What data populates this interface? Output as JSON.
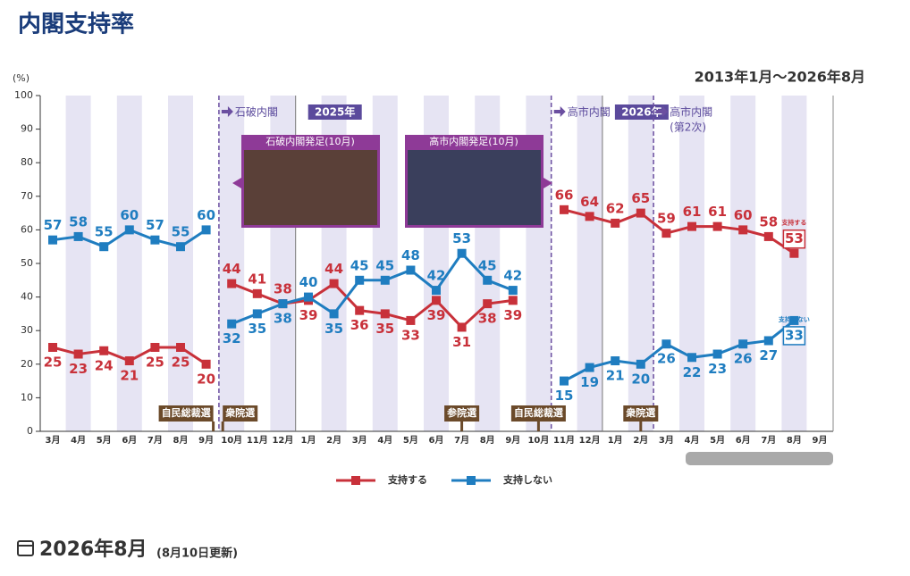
{
  "header": {
    "title": "内閣支持率",
    "range": "2013年1月～2026年8月"
  },
  "chart_data": {
    "type": "line",
    "y_unit_label": "(%)",
    "categories": [
      "3月",
      "4月",
      "5月",
      "6月",
      "7月",
      "8月",
      "9月",
      "10月",
      "11月",
      "12月",
      "1月",
      "2月",
      "3月",
      "4月",
      "5月",
      "6月",
      "7月",
      "8月",
      "9月",
      "10月",
      "11月",
      "12月",
      "1月",
      "2月",
      "3月",
      "4月",
      "5月",
      "6月",
      "7月",
      "8月",
      "9月"
    ],
    "series": [
      {
        "name": "支持する",
        "color": "#c8313a",
        "values": [
          25,
          23,
          24,
          21,
          25,
          25,
          20,
          44,
          41,
          38,
          39,
          44,
          36,
          35,
          33,
          39,
          31,
          38,
          39,
          null,
          66,
          64,
          62,
          65,
          59,
          61,
          61,
          60,
          58,
          53,
          null
        ]
      },
      {
        "name": "支持しない",
        "color": "#1f7dc0",
        "values": [
          57,
          58,
          55,
          60,
          57,
          55,
          60,
          32,
          35,
          38,
          40,
          35,
          45,
          45,
          48,
          42,
          53,
          45,
          42,
          null,
          15,
          19,
          21,
          20,
          26,
          22,
          23,
          26,
          27,
          33,
          null
        ]
      }
    ],
    "ylim": [
      0,
      100
    ],
    "yticks": [
      0,
      10,
      20,
      30,
      40,
      50,
      60,
      70,
      80,
      90,
      100
    ],
    "year_labels": [
      {
        "label": "2025年",
        "category": 10
      },
      {
        "label": "2026年",
        "category": 22
      }
    ],
    "cabinets": [
      {
        "label": "石破内閣",
        "category": 7,
        "line_break": true
      },
      {
        "label": "高市内閣",
        "category": 20,
        "line_break": true
      },
      {
        "label": "高市内閣",
        "sublabel": "(第2次)",
        "category": 24,
        "line_break": false
      }
    ],
    "events": [
      {
        "label": "自民総裁選",
        "category": 6
      },
      {
        "label": "衆院選",
        "category": 7
      },
      {
        "label": "参院選",
        "category": 16
      },
      {
        "label": "自民総裁選",
        "category": 19
      },
      {
        "label": "衆院選",
        "category": 23
      }
    ],
    "photo_callouts": [
      {
        "label": "石破内閣発足(10月)"
      },
      {
        "label": "高市内閣発足(10月)"
      }
    ]
  },
  "footer": {
    "date": "2026年8月",
    "note": "(8月10日更新)"
  }
}
